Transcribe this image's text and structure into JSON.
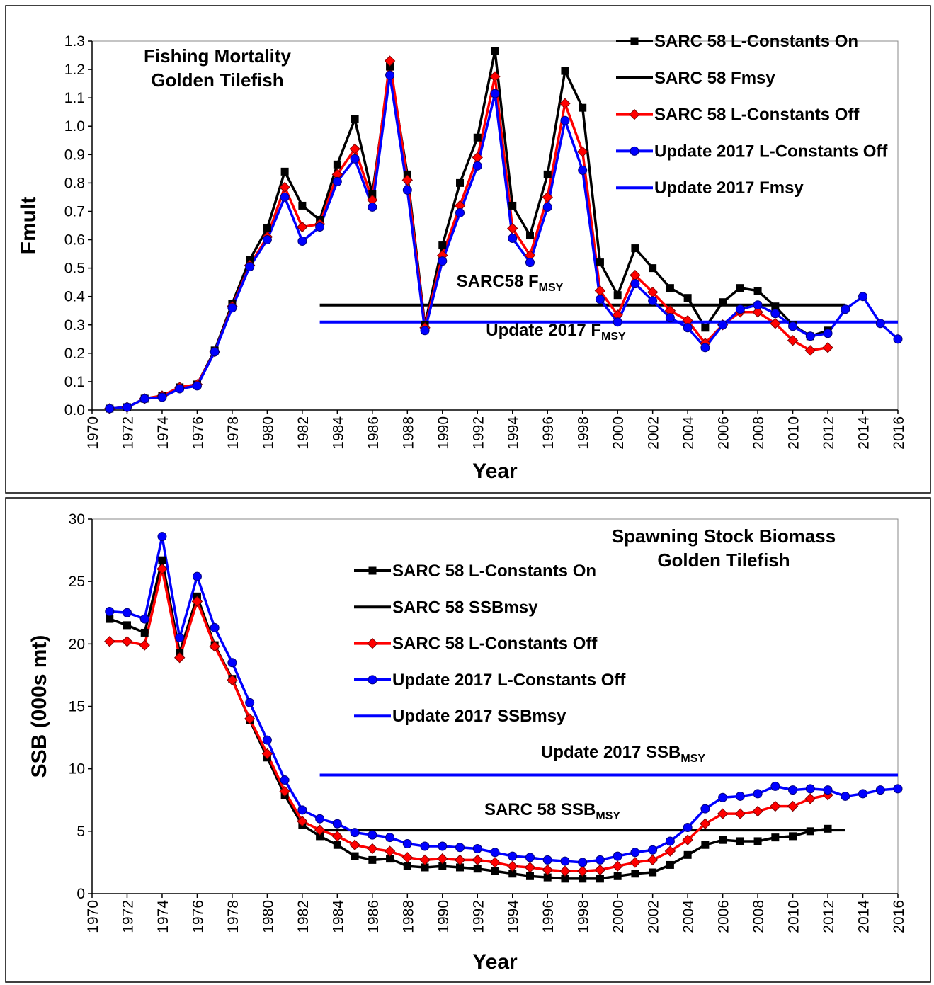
{
  "chart_data": [
    {
      "type": "line",
      "title_lines": [
        "Fishing Mortality",
        "Golden Tilefish"
      ],
      "xlabel": "Year",
      "ylabel": "Fmult",
      "xlim": [
        1970,
        2016
      ],
      "xticks": [
        1970,
        1972,
        1974,
        1976,
        1978,
        1980,
        1982,
        1984,
        1986,
        1988,
        1990,
        1992,
        1994,
        1996,
        1998,
        2000,
        2002,
        2004,
        2006,
        2008,
        2010,
        2012,
        2014,
        2016
      ],
      "ylim": [
        0,
        1.3
      ],
      "yticks": [
        {
          "value": 0,
          "label": "0.0"
        },
        0.1,
        0.2,
        0.3,
        0.4,
        0.5,
        0.6,
        0.7,
        0.8,
        0.9,
        {
          "value": 1,
          "label": "1.0"
        },
        1.1,
        1.2,
        1.3
      ],
      "legend": "upper right",
      "x": [
        1971,
        1972,
        1973,
        1974,
        1975,
        1976,
        1977,
        1978,
        1979,
        1980,
        1981,
        1982,
        1983,
        1984,
        1985,
        1986,
        1987,
        1988,
        1989,
        1990,
        1991,
        1992,
        1993,
        1994,
        1995,
        1996,
        1997,
        1998,
        1999,
        2000,
        2001,
        2002,
        2003,
        2004,
        2005,
        2006,
        2007,
        2008,
        2009,
        2010,
        2011,
        2012,
        2013,
        2014,
        2015,
        2016
      ],
      "series": [
        {
          "name": "SARC 58 L-Constants On",
          "color": "#000000",
          "marker": "square",
          "values": [
            0.005,
            0.01,
            0.04,
            0.05,
            0.08,
            0.09,
            0.21,
            0.375,
            0.53,
            0.64,
            0.84,
            0.72,
            0.67,
            0.865,
            1.025,
            0.76,
            1.21,
            0.83,
            0.3,
            0.58,
            0.8,
            0.96,
            1.265,
            0.72,
            0.615,
            0.83,
            1.195,
            1.065,
            0.52,
            0.405,
            0.57,
            0.5,
            0.43,
            0.395,
            0.29,
            0.38,
            0.43,
            0.42,
            0.365,
            0.3,
            0.26,
            0.28,
            null,
            null,
            null,
            null
          ]
        },
        {
          "name": "SARC 58 Fmsy",
          "color": "#000000",
          "marker": "none",
          "values": [
            null,
            null,
            null,
            null,
            null,
            null,
            null,
            null,
            null,
            null,
            null,
            null,
            0.37,
            0.37,
            0.37,
            0.37,
            0.37,
            0.37,
            0.37,
            0.37,
            0.37,
            0.37,
            0.37,
            0.37,
            0.37,
            0.37,
            0.37,
            0.37,
            0.37,
            0.37,
            0.37,
            0.37,
            0.37,
            0.37,
            0.37,
            0.37,
            0.37,
            0.37,
            0.37,
            0.37,
            0.37,
            0.37,
            0.37,
            null,
            null,
            null
          ]
        },
        {
          "name": "SARC 58 L-Constants Off",
          "color": "#ff0000",
          "marker": "diamond",
          "values": [
            0.005,
            0.01,
            0.04,
            0.05,
            0.08,
            0.09,
            0.205,
            0.365,
            0.51,
            0.61,
            0.785,
            0.645,
            0.655,
            0.83,
            0.92,
            0.74,
            1.23,
            0.81,
            0.29,
            0.545,
            0.72,
            0.89,
            1.175,
            0.64,
            0.545,
            0.75,
            1.08,
            0.91,
            0.42,
            0.335,
            0.475,
            0.415,
            0.35,
            0.315,
            0.235,
            0.3,
            0.345,
            0.345,
            0.305,
            0.245,
            0.21,
            0.22,
            null,
            null,
            null,
            null
          ]
        },
        {
          "name": "Update 2017 L-Constants Off",
          "color": "#0000ff",
          "marker": "circle",
          "values": [
            0.005,
            0.01,
            0.04,
            0.045,
            0.075,
            0.085,
            0.205,
            0.36,
            0.505,
            0.6,
            0.75,
            0.595,
            0.645,
            0.805,
            0.885,
            0.715,
            1.18,
            0.775,
            0.28,
            0.525,
            0.695,
            0.86,
            1.115,
            0.605,
            0.52,
            0.715,
            1.02,
            0.845,
            0.39,
            0.31,
            0.445,
            0.385,
            0.325,
            0.29,
            0.22,
            0.3,
            0.355,
            0.37,
            0.34,
            0.295,
            0.26,
            0.27,
            0.355,
            0.4,
            0.305,
            0.25
          ]
        },
        {
          "name": "Update 2017 Fmsy",
          "color": "#0000ff",
          "marker": "none",
          "values": [
            null,
            null,
            null,
            null,
            null,
            null,
            null,
            null,
            null,
            null,
            null,
            null,
            0.31,
            0.31,
            0.31,
            0.31,
            0.31,
            0.31,
            0.31,
            0.31,
            0.31,
            0.31,
            0.31,
            0.31,
            0.31,
            0.31,
            0.31,
            0.31,
            0.31,
            0.31,
            0.31,
            0.31,
            0.31,
            0.31,
            0.31,
            0.31,
            0.31,
            0.31,
            0.31,
            0.31,
            0.31,
            0.31,
            0.31,
            0.31,
            0.31,
            0.31
          ]
        }
      ],
      "annotations": [
        {
          "text": "SARC58 F",
          "sub": "MSY"
        },
        {
          "text": "Update 2017 F",
          "sub": "MSY"
        }
      ]
    },
    {
      "type": "line",
      "title_lines": [
        "Spawning Stock Biomass",
        "Golden Tilefish"
      ],
      "xlabel": "Year",
      "ylabel": "SSB (000s mt)",
      "xlim": [
        1970,
        2016
      ],
      "xticks": [
        1970,
        1972,
        1974,
        1976,
        1978,
        1980,
        1982,
        1984,
        1986,
        1988,
        1990,
        1992,
        1994,
        1996,
        1998,
        2000,
        2002,
        2004,
        2006,
        2008,
        2010,
        2012,
        2014,
        2016
      ],
      "ylim": [
        0,
        30
      ],
      "yticks": [
        0,
        5,
        10,
        15,
        20,
        25,
        30
      ],
      "legend": "upper center",
      "x": [
        1971,
        1972,
        1973,
        1974,
        1975,
        1976,
        1977,
        1978,
        1979,
        1980,
        1981,
        1982,
        1983,
        1984,
        1985,
        1986,
        1987,
        1988,
        1989,
        1990,
        1991,
        1992,
        1993,
        1994,
        1995,
        1996,
        1997,
        1998,
        1999,
        2000,
        2001,
        2002,
        2003,
        2004,
        2005,
        2006,
        2007,
        2008,
        2009,
        2010,
        2011,
        2012,
        2013,
        2014,
        2015,
        2016
      ],
      "series": [
        {
          "name": "SARC 58 L-Constants On",
          "color": "#000000",
          "marker": "square",
          "values": [
            22.0,
            21.5,
            20.9,
            26.7,
            19.3,
            23.8,
            19.9,
            17.2,
            13.9,
            10.9,
            7.9,
            5.5,
            4.6,
            3.9,
            3.0,
            2.7,
            2.8,
            2.2,
            2.1,
            2.2,
            2.1,
            2.0,
            1.8,
            1.6,
            1.4,
            1.3,
            1.2,
            1.2,
            1.2,
            1.4,
            1.6,
            1.7,
            2.3,
            3.1,
            3.9,
            4.3,
            4.2,
            4.2,
            4.5,
            4.6,
            5.0,
            5.2,
            null,
            null,
            null,
            null
          ]
        },
        {
          "name": "SARC 58 SSBmsy",
          "color": "#000000",
          "marker": "none",
          "values": [
            null,
            null,
            null,
            null,
            null,
            null,
            null,
            null,
            null,
            null,
            null,
            null,
            5.1,
            5.1,
            5.1,
            5.1,
            5.1,
            5.1,
            5.1,
            5.1,
            5.1,
            5.1,
            5.1,
            5.1,
            5.1,
            5.1,
            5.1,
            5.1,
            5.1,
            5.1,
            5.1,
            5.1,
            5.1,
            5.1,
            5.1,
            5.1,
            5.1,
            5.1,
            5.1,
            5.1,
            5.1,
            5.1,
            5.1,
            null,
            null,
            null
          ]
        },
        {
          "name": "SARC 58 L-Constants Off",
          "color": "#ff0000",
          "marker": "diamond",
          "values": [
            20.2,
            20.2,
            19.9,
            26.0,
            18.9,
            23.4,
            19.8,
            17.1,
            14.0,
            11.2,
            8.2,
            5.8,
            5.1,
            4.6,
            3.9,
            3.6,
            3.4,
            2.9,
            2.7,
            2.8,
            2.7,
            2.7,
            2.5,
            2.2,
            2.1,
            1.9,
            1.8,
            1.8,
            1.9,
            2.2,
            2.5,
            2.7,
            3.4,
            4.3,
            5.6,
            6.4,
            6.4,
            6.6,
            7.0,
            7.0,
            7.6,
            7.9,
            null,
            null,
            null,
            null
          ]
        },
        {
          "name": "Update 2017 L-Constants Off",
          "color": "#0000ff",
          "marker": "circle",
          "values": [
            22.6,
            22.5,
            22.0,
            28.6,
            20.5,
            25.4,
            21.3,
            18.5,
            15.3,
            12.3,
            9.1,
            6.7,
            6.0,
            5.6,
            4.9,
            4.7,
            4.5,
            4.0,
            3.8,
            3.8,
            3.7,
            3.6,
            3.3,
            3.0,
            2.9,
            2.7,
            2.6,
            2.5,
            2.7,
            3.0,
            3.3,
            3.5,
            4.2,
            5.3,
            6.8,
            7.7,
            7.8,
            8.0,
            8.6,
            8.3,
            8.4,
            8.3,
            7.8,
            8.0,
            8.3,
            8.4
          ]
        },
        {
          "name": "Update 2017 SSBmsy",
          "color": "#0000ff",
          "marker": "none",
          "values": [
            null,
            null,
            null,
            null,
            null,
            null,
            null,
            null,
            null,
            null,
            null,
            null,
            9.5,
            9.5,
            9.5,
            9.5,
            9.5,
            9.5,
            9.5,
            9.5,
            9.5,
            9.5,
            9.5,
            9.5,
            9.5,
            9.5,
            9.5,
            9.5,
            9.5,
            9.5,
            9.5,
            9.5,
            9.5,
            9.5,
            9.5,
            9.5,
            9.5,
            9.5,
            9.5,
            9.5,
            9.5,
            9.5,
            9.5,
            9.5,
            9.5,
            9.5
          ]
        }
      ],
      "annotations": [
        {
          "text": "Update 2017 SSB",
          "sub": "MSY"
        },
        {
          "text": "SARC 58 SSB",
          "sub": "MSY"
        }
      ]
    }
  ]
}
